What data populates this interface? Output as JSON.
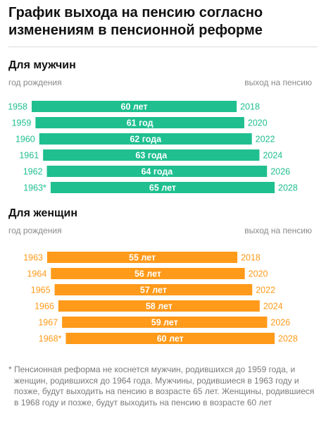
{
  "title": "График выхода на пенсию согласно изменениям в пенсионной реформе",
  "colors": {
    "men": "#1fbf8f",
    "women": "#ff9a1a"
  },
  "chart_data": [
    {
      "type": "bar",
      "title": "Для мужчин",
      "xlabel_left": "год рождения",
      "xlabel_right": "выход на пенсию",
      "categories": [
        "1958",
        "1959",
        "1960",
        "1961",
        "1962",
        "1963*"
      ],
      "values": [
        60,
        61,
        62,
        63,
        64,
        65
      ],
      "labels": [
        "60 лет",
        "61 год",
        "62 года",
        "63 года",
        "64 года",
        "65 лет"
      ],
      "start": [
        1958,
        1959,
        1960,
        1961,
        1962,
        1963
      ],
      "end": [
        2018,
        2020,
        2022,
        2024,
        2026,
        2028
      ],
      "end_labels": [
        "2018",
        "2020",
        "2022",
        "2024",
        "2026",
        "2028"
      ]
    },
    {
      "type": "bar",
      "title": "Для женщин",
      "xlabel_left": "год рождения",
      "xlabel_right": "выход на пенсию",
      "categories": [
        "1963",
        "1964",
        "1965",
        "1966",
        "1967",
        "1968*"
      ],
      "values": [
        55,
        56,
        57,
        58,
        59,
        60
      ],
      "labels": [
        "55 лет",
        "56 лет",
        "57 лет",
        "58 лет",
        "59 лет",
        "60 лет"
      ],
      "start": [
        1963,
        1964,
        1965,
        1966,
        1967,
        1968
      ],
      "end": [
        2018,
        2020,
        2022,
        2024,
        2026,
        2028
      ],
      "end_labels": [
        "2018",
        "2020",
        "2022",
        "2024",
        "2026",
        "2028"
      ]
    }
  ],
  "footnote": {
    "mark": "*",
    "text": "Пенсионная реформа не коснется мужчин, родившихся до 1959 года, и женщин, родившихся до 1964 года. Мужчины, родившиеся в 1963 году и позже, будут выходить на пенсию в возрасте 65 лет. Женщины, родившиеся в 1968 году и позже, будут выходить на пенсию в возрасте 60 лет"
  }
}
